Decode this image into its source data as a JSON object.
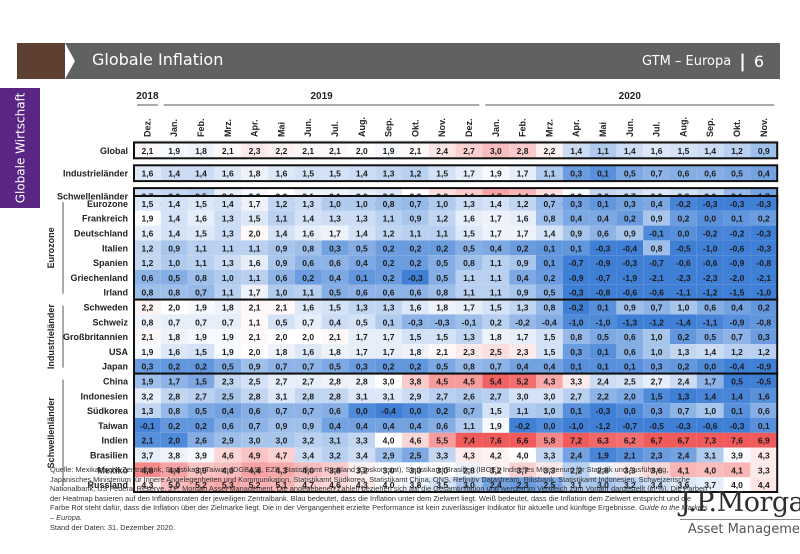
{
  "header": {
    "title": "Globale Inflation",
    "series_label": "GTM – Europa",
    "separator": "|",
    "page_number": "6"
  },
  "side_tab": {
    "label": "Globale Wirtschaft"
  },
  "footer": {
    "source_text": "Quelle: Mexikanische Zentralbank, Statistikamt Taiwan (DGBAS), EZB, Statistikamt Russland (Goskomstat), Statistikamt Brasilien (IBGE), Indisches Ministerium für Statistik und Ausführung, Japanisches Ministerium für Innere Angelegenheiten und Kommunikation, Statistikamt Südkorea, Statistikamt China, ONS, Refinitiv Datastream, Riksbank, Statistikamt Indonesien, Schweizerische Nationalbank, US Federal Reserve, J.P. Morgan Asset Management. Die angegebenen Zahlen beziehen sich auf die Gesamtinflation und werden im Vergleich zum Vorjahr dargestellt (in %). Die Farben der Heatmap basieren auf den Inflationsraten der jeweiligen Zentralbank. Blau bedeutet, dass die Inflation unter dem Zielwert liegt. Weiß bedeutet, dass die Inflation dem Zielwert entspricht und die Farbe Rot steht dafür, dass die Inflation über der Zielmarke liegt. Die in der Vergangenheit erzielte Performance ist kein zuverlässiger Indikator für aktuelle und künftige Ergebnisse.",
    "guide_text": "Guide to the Markets – Europa.",
    "date_text": "Stand der Daten: 31. Dezember 2020."
  },
  "logo": {
    "brand": "J.P.Morgan",
    "sub": "Asset Management"
  },
  "colors": {
    "header_bar": "#616161",
    "header_accent": "#5e4032",
    "side_tab": "#5b2683",
    "cold": "#3f7fd6",
    "neutral": "#ffffff",
    "hot": "#f15a5a"
  },
  "chart_data": {
    "type": "heatmap",
    "title": "Globale Inflation",
    "unit": "% ggü. Vorjahr",
    "years": [
      {
        "label": "2018",
        "span": 1
      },
      {
        "label": "2019",
        "span": 12
      },
      {
        "label": "2020",
        "span": 11
      }
    ],
    "columns": [
      "Dez.",
      "Jan.",
      "Feb.",
      "Mrz.",
      "Apr.",
      "Mai",
      "Jun.",
      "Jul.",
      "Aug.",
      "Sep.",
      "Okt.",
      "Nov.",
      "Dez.",
      "Jan.",
      "Feb.",
      "Mrz.",
      "Apr.",
      "Mai",
      "Jun.",
      "Jul.",
      "Aug.",
      "Sep.",
      "Okt.",
      "Nov."
    ],
    "aggregates": [
      {
        "name": "Global",
        "target": 2.0,
        "values": [
          2.1,
          1.9,
          1.8,
          2.1,
          2.3,
          2.2,
          2.1,
          2.1,
          2.0,
          1.9,
          2.1,
          2.4,
          2.7,
          3.0,
          2.8,
          2.2,
          1.4,
          1.1,
          1.4,
          1.6,
          1.5,
          1.4,
          1.2,
          0.9
        ]
      },
      {
        "name": "Industrieländer",
        "target": 2.0,
        "values": [
          1.6,
          1.4,
          1.4,
          1.6,
          1.8,
          1.6,
          1.5,
          1.5,
          1.4,
          1.3,
          1.2,
          1.5,
          1.7,
          1.9,
          1.7,
          1.1,
          0.3,
          0.1,
          0.5,
          0.7,
          0.6,
          0.6,
          0.5,
          0.4
        ]
      },
      {
        "name": "Schwellenländer",
        "target": 3.3,
        "values": [
          2.7,
          2.6,
          2.5,
          3.0,
          3.2,
          3.3,
          3.1,
          3.1,
          3.0,
          2.9,
          3.3,
          3.8,
          4.1,
          4.7,
          4.4,
          3.8,
          3.2,
          2.6,
          2.7,
          2.9,
          2.8,
          2.6,
          2.1,
          1.7
        ]
      }
    ],
    "groups": [
      {
        "name": "Eurozone",
        "rows": [
          {
            "name": "Eurozone",
            "target": 1.9,
            "values": [
              1.5,
              1.4,
              1.5,
              1.4,
              1.7,
              1.2,
              1.3,
              1.0,
              1.0,
              0.8,
              0.7,
              1.0,
              1.3,
              1.4,
              1.2,
              0.7,
              0.3,
              0.1,
              0.3,
              0.4,
              -0.2,
              -0.3,
              -0.3,
              -0.3
            ]
          },
          {
            "name": "Frankreich",
            "target": 1.9,
            "values": [
              1.9,
              1.4,
              1.6,
              1.3,
              1.5,
              1.1,
              1.4,
              1.3,
              1.3,
              1.1,
              0.9,
              1.2,
              1.6,
              1.7,
              1.6,
              0.8,
              0.4,
              0.4,
              0.2,
              0.9,
              0.2,
              0.0,
              0.1,
              0.2
            ]
          },
          {
            "name": "Deutschland",
            "target": 1.9,
            "values": [
              1.6,
              1.4,
              1.5,
              1.3,
              2.0,
              1.4,
              1.6,
              1.7,
              1.4,
              1.2,
              1.1,
              1.1,
              1.5,
              1.7,
              1.7,
              1.4,
              0.9,
              0.6,
              0.9,
              -0.1,
              0.0,
              -0.2,
              -0.2,
              -0.3
            ]
          },
          {
            "name": "Italien",
            "target": 1.9,
            "values": [
              1.2,
              0.9,
              1.1,
              1.1,
              1.1,
              0.9,
              0.8,
              0.3,
              0.5,
              0.2,
              0.2,
              0.2,
              0.5,
              0.4,
              0.2,
              0.1,
              0.1,
              -0.3,
              -0.4,
              0.8,
              -0.5,
              -1.0,
              -0.6,
              -0.3
            ]
          },
          {
            "name": "Spanien",
            "target": 1.9,
            "values": [
              1.2,
              1.0,
              1.1,
              1.3,
              1.6,
              0.9,
              0.6,
              0.6,
              0.4,
              0.2,
              0.2,
              0.5,
              0.8,
              1.1,
              0.9,
              0.1,
              -0.7,
              -0.9,
              -0.3,
              -0.7,
              -0.6,
              -0.6,
              -0.9,
              -0.8
            ]
          },
          {
            "name": "Griechenland",
            "target": 1.9,
            "values": [
              0.6,
              0.5,
              0.8,
              1.0,
              1.1,
              0.6,
              0.2,
              0.4,
              0.1,
              0.2,
              -0.3,
              0.5,
              1.1,
              1.1,
              0.4,
              0.2,
              -0.9,
              -0.7,
              -1.9,
              -2.1,
              -2.3,
              -2.3,
              -2.0,
              -2.1
            ]
          },
          {
            "name": "Irland",
            "target": 1.9,
            "values": [
              0.8,
              0.8,
              0.7,
              1.1,
              1.7,
              1.0,
              1.1,
              0.5,
              0.6,
              0.6,
              0.6,
              0.8,
              1.1,
              1.1,
              0.9,
              0.5,
              -0.3,
              -0.8,
              -0.6,
              -0.6,
              -1.1,
              -1.2,
              -1.5,
              -1.0
            ]
          }
        ]
      },
      {
        "name": "Industrieländer",
        "rows": [
          {
            "name": "Schweden",
            "target": 2.0,
            "values": [
              2.2,
              2.0,
              1.9,
              1.8,
              2.1,
              2.1,
              1.6,
              1.5,
              1.3,
              1.3,
              1.6,
              1.8,
              1.7,
              1.5,
              1.3,
              0.8,
              -0.2,
              0.1,
              0.9,
              0.7,
              1.0,
              0.6,
              0.4,
              0.2
            ]
          },
          {
            "name": "Schweiz",
            "target": 1.0,
            "values": [
              0.8,
              0.7,
              0.7,
              0.7,
              1.1,
              0.5,
              0.7,
              0.4,
              0.5,
              0.1,
              -0.3,
              -0.3,
              -0.1,
              0.2,
              -0.2,
              -0.4,
              -1.0,
              -1.0,
              -1.3,
              -1.2,
              -1.4,
              -1.1,
              -0.9,
              -0.8
            ]
          },
          {
            "name": "Großbritannien",
            "target": 2.0,
            "values": [
              2.1,
              1.8,
              1.9,
              1.9,
              2.1,
              2.0,
              2.0,
              2.1,
              1.7,
              1.7,
              1.5,
              1.5,
              1.3,
              1.8,
              1.7,
              1.5,
              0.8,
              0.5,
              0.6,
              1.0,
              0.2,
              0.5,
              0.7,
              0.3
            ]
          },
          {
            "name": "USA",
            "target": 2.0,
            "values": [
              1.9,
              1.6,
              1.5,
              1.9,
              2.0,
              1.8,
              1.6,
              1.8,
              1.7,
              1.7,
              1.8,
              2.1,
              2.3,
              2.5,
              2.3,
              1.5,
              0.3,
              0.1,
              0.6,
              1.0,
              1.3,
              1.4,
              1.2,
              1.2
            ]
          },
          {
            "name": "Japan",
            "target": 2.0,
            "values": [
              0.3,
              0.2,
              0.2,
              0.5,
              0.9,
              0.7,
              0.7,
              0.5,
              0.3,
              0.2,
              0.2,
              0.5,
              0.8,
              0.7,
              0.4,
              0.4,
              0.1,
              0.1,
              0.1,
              0.3,
              0.2,
              0.0,
              -0.4,
              -0.9
            ]
          }
        ]
      },
      {
        "name": "Schwellenländer",
        "rows": [
          {
            "name": "China",
            "target": 3.0,
            "values": [
              1.9,
              1.7,
              1.5,
              2.3,
              2.5,
              2.7,
              2.7,
              2.8,
              2.8,
              3.0,
              3.8,
              4.5,
              4.5,
              5.4,
              5.2,
              4.3,
              3.3,
              2.4,
              2.5,
              2.7,
              2.4,
              1.7,
              0.5,
              -0.5
            ]
          },
          {
            "name": "Indonesien",
            "target": 3.5,
            "values": [
              3.2,
              2.8,
              2.7,
              2.5,
              2.8,
              3.1,
              2.8,
              2.8,
              3.1,
              3.1,
              2.9,
              2.7,
              2.6,
              2.7,
              3.0,
              3.0,
              2.7,
              2.2,
              2.0,
              1.5,
              1.3,
              1.4,
              1.4,
              1.6
            ]
          },
          {
            "name": "Südkorea",
            "target": 2.0,
            "values": [
              1.3,
              0.8,
              0.5,
              0.4,
              0.6,
              0.7,
              0.7,
              0.6,
              0.0,
              -0.4,
              0.0,
              0.2,
              0.7,
              1.5,
              1.1,
              1.0,
              0.1,
              -0.3,
              0.0,
              0.3,
              0.7,
              1.0,
              0.1,
              0.6
            ]
          },
          {
            "name": "Taiwan",
            "target": 2.0,
            "values": [
              -0.1,
              0.2,
              0.2,
              0.6,
              0.7,
              0.9,
              0.9,
              0.4,
              0.4,
              0.4,
              0.4,
              0.6,
              1.1,
              1.9,
              -0.2,
              0.0,
              -1.0,
              -1.2,
              -0.7,
              -0.5,
              -0.3,
              -0.6,
              -0.3,
              0.1
            ]
          },
          {
            "name": "Indien",
            "target": 4.0,
            "values": [
              2.1,
              2.0,
              2.6,
              2.9,
              3.0,
              3.0,
              3.2,
              3.1,
              3.3,
              4.0,
              4.6,
              5.5,
              7.4,
              7.6,
              6.6,
              5.8,
              7.2,
              6.3,
              6.2,
              6.7,
              6.7,
              7.3,
              7.6,
              6.9
            ]
          },
          {
            "name": "Brasilien",
            "target": 4.0,
            "values": [
              3.7,
              3.8,
              3.9,
              4.6,
              4.9,
              4.7,
              3.4,
              3.2,
              3.4,
              2.9,
              2.5,
              3.3,
              4.3,
              4.2,
              4.0,
              3.3,
              2.4,
              1.9,
              2.1,
              2.3,
              2.4,
              3.1,
              3.9,
              4.3
            ]
          },
          {
            "name": "Mexiko",
            "target": 3.0,
            "values": [
              4.8,
              4.4,
              3.9,
              4.0,
              4.4,
              4.3,
              4.0,
              3.8,
              3.2,
              3.0,
              3.0,
              3.0,
              2.8,
              3.2,
              3.7,
              3.3,
              2.2,
              2.8,
              3.3,
              3.6,
              4.1,
              4.0,
              4.1,
              3.3
            ]
          },
          {
            "name": "Russland",
            "target": 4.0,
            "values": [
              4.3,
              5.0,
              5.2,
              5.3,
              5.2,
              5.1,
              4.7,
              4.6,
              4.3,
              4.0,
              3.8,
              3.5,
              3.0,
              2.4,
              2.3,
              2.5,
              3.1,
              3.0,
              3.2,
              3.4,
              3.6,
              3.7,
              4.0,
              4.4
            ]
          }
        ]
      }
    ]
  }
}
